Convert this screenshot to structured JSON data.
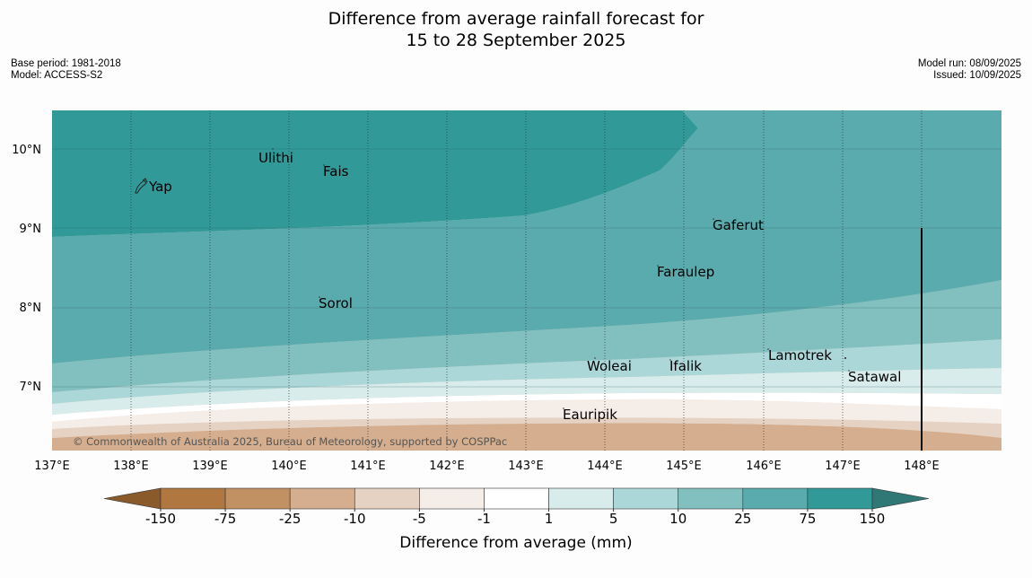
{
  "title": {
    "line1": "Difference from average rainfall forecast for",
    "line2": "15 to 28 September 2025"
  },
  "meta": {
    "base_period": "Base period: 1981-2018",
    "model": "Model: ACCESS-S2",
    "model_run": "Model run: 08/09/2025",
    "issued": "Issued: 10/09/2025"
  },
  "map": {
    "lat_labels": [
      "10°N",
      "9°N",
      "8°N",
      "7°N"
    ],
    "lon_labels": [
      "137°E",
      "138°E",
      "139°E",
      "140°E",
      "141°E",
      "142°E",
      "143°E",
      "144°E",
      "145°E",
      "146°E",
      "147°E",
      "148°E"
    ],
    "places": [
      {
        "name": "Yap"
      },
      {
        "name": "Ulithi"
      },
      {
        "name": "Fais"
      },
      {
        "name": "Gaferut"
      },
      {
        "name": "Faraulep"
      },
      {
        "name": "Sorol"
      },
      {
        "name": "Woleai"
      },
      {
        "name": "Ifalik"
      },
      {
        "name": "Lamotrek"
      },
      {
        "name": "Satawal"
      },
      {
        "name": "Eauripik"
      }
    ],
    "copyright": "© Commonwealth of Australia 2025, Bureau of Meteorology, supported by COSPPac"
  },
  "colorbar": {
    "title": "Difference from average (mm)",
    "ticks": [
      "-150",
      "-75",
      "-25",
      "-10",
      "-5",
      "-1",
      "1",
      "5",
      "10",
      "25",
      "75",
      "150"
    ],
    "colors": [
      "#8b5a2b",
      "#b07840",
      "#c29163",
      "#d4ae8e",
      "#e5d2c2",
      "#f5ede8",
      "#ffffff",
      "#d8ecec",
      "#acd7d8",
      "#82bfbf",
      "#5aabad",
      "#319a98",
      "#2f7876"
    ]
  }
}
